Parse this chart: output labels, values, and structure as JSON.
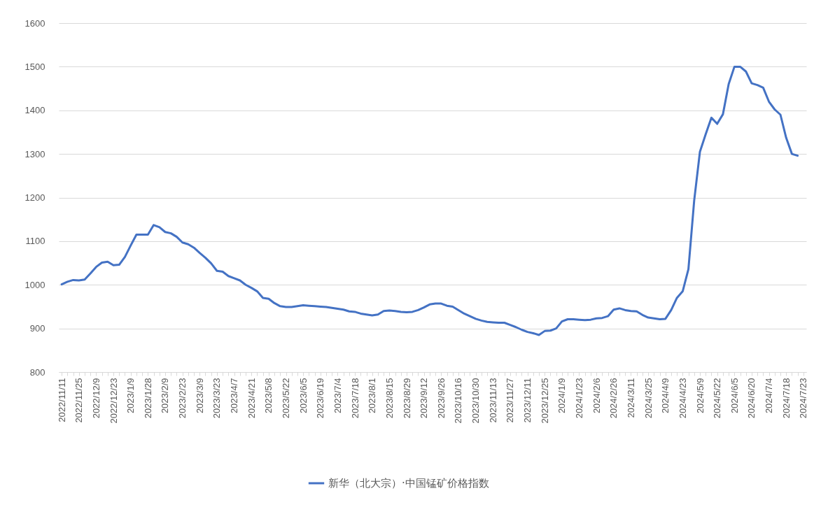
{
  "chart_data": {
    "type": "line",
    "categories": [
      "2022/11/11",
      null,
      null,
      "2022/11/25",
      null,
      null,
      "2022/12/9",
      null,
      null,
      "2022/12/23",
      null,
      null,
      "2023/1/9",
      null,
      null,
      "2023/1/28",
      null,
      null,
      "2023/2/9",
      null,
      null,
      "2023/2/23",
      null,
      null,
      "2023/3/9",
      null,
      null,
      "2023/3/23",
      null,
      null,
      "2023/4/7",
      null,
      null,
      "2023/4/21",
      null,
      null,
      "2023/5/8",
      null,
      null,
      "2023/5/22",
      null,
      null,
      "2023/6/5",
      null,
      null,
      "2023/6/19",
      null,
      null,
      "2023/7/4",
      null,
      null,
      "2023/7/18",
      null,
      null,
      "2023/8/1",
      null,
      null,
      "2023/8/15",
      null,
      null,
      "2023/8/29",
      null,
      null,
      "2023/9/12",
      null,
      null,
      "2023/9/26",
      null,
      null,
      "2023/10/16",
      null,
      null,
      "2023/10/30",
      null,
      null,
      "2023/11/13",
      null,
      null,
      "2023/11/27",
      null,
      null,
      "2023/12/11",
      null,
      null,
      "2023/12/25",
      null,
      null,
      "2024/1/9",
      null,
      null,
      "2024/1/23",
      null,
      null,
      "2024/2/6",
      null,
      null,
      "2024/2/26",
      null,
      null,
      "2024/3/11",
      null,
      null,
      "2024/3/25",
      null,
      null,
      "2024/4/9",
      null,
      null,
      "2024/4/23",
      null,
      null,
      "2024/5/9",
      null,
      null,
      "2024/5/22",
      null,
      null,
      "2024/6/5",
      null,
      null,
      "2024/6/20",
      null,
      null,
      "2024/7/4",
      null,
      null,
      "2024/7/18",
      null,
      null,
      "2024/7/23"
    ],
    "series": [
      {
        "name": "新华（北大宗）·中国锰矿价格指数",
        "color": "#4472c4",
        "values": [
          1001,
          1007,
          1011,
          1010,
          1012,
          1026,
          1041,
          1051,
          1053,
          1045,
          1046,
          1064,
          1090,
          1115,
          1115,
          1115,
          1137,
          1132,
          1121,
          1118,
          1110,
          1097,
          1093,
          1085,
          1073,
          1062,
          1049,
          1032,
          1030,
          1020,
          1015,
          1010,
          1000,
          993,
          985,
          970,
          968,
          958,
          951,
          949,
          949,
          951,
          953,
          952,
          951,
          950,
          949,
          947,
          945,
          943,
          939,
          938,
          934,
          932,
          930,
          932,
          940,
          941,
          940,
          938,
          937,
          938,
          942,
          948,
          955,
          957,
          957,
          952,
          950,
          942,
          934,
          928,
          922,
          918,
          915,
          914,
          913,
          913,
          908,
          903,
          897,
          892,
          889,
          885,
          894,
          895,
          900,
          916,
          921,
          921,
          920,
          919,
          920,
          923,
          924,
          928,
          943,
          946,
          942,
          940,
          939,
          931,
          925,
          923,
          921,
          922,
          942,
          970,
          985,
          1036,
          1193,
          1305,
          1345,
          1383,
          1369,
          1391,
          1460,
          1500,
          1500,
          1489,
          1462,
          1458,
          1452,
          1420,
          1402,
          1390,
          1337,
          1300,
          1296,
          null
        ]
      }
    ],
    "ylim": [
      800,
      1600
    ],
    "yticks": [
      800,
      900,
      1000,
      1100,
      1200,
      1300,
      1400,
      1500,
      1600
    ],
    "grid": "y",
    "legend": "bottom",
    "marker": "none",
    "line_style": "solid"
  }
}
